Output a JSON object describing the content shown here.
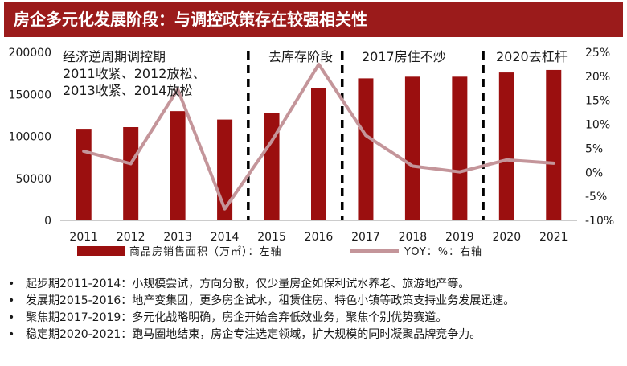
{
  "title": "房企多元化发展阶段：与调控政策存在较强相关性",
  "chart_data": {
    "type": "bar",
    "categories": [
      "2011",
      "2012",
      "2013",
      "2014",
      "2015",
      "2016",
      "2017",
      "2018",
      "2019",
      "2020",
      "2021"
    ],
    "series": [
      {
        "name": "商品房销售面积（万㎡）：左轴",
        "type": "bar",
        "axis": "left",
        "values": [
          109000,
          111000,
          130000,
          120000,
          128000,
          157000,
          169000,
          171000,
          171000,
          176000,
          179000
        ]
      },
      {
        "name": "YOY：%：右轴",
        "type": "line",
        "axis": "right",
        "values": [
          4.4,
          1.8,
          17.3,
          -7.6,
          6.5,
          22.5,
          7.7,
          1.3,
          0.1,
          2.6,
          1.9
        ]
      }
    ],
    "y_left": {
      "min": 0,
      "max": 200000,
      "ticks": [
        "0",
        "50000",
        "100000",
        "150000",
        "200000"
      ],
      "tick_values": [
        0,
        50000,
        100000,
        150000,
        200000
      ]
    },
    "y_right": {
      "min": -10,
      "max": 25,
      "ticks": [
        "-10%",
        "-5%",
        "0%",
        "5%",
        "10%",
        "15%",
        "20%",
        "25%"
      ],
      "tick_values": [
        -10,
        -5,
        0,
        5,
        10,
        15,
        20,
        25
      ]
    },
    "dividers_after_index": [
      3,
      5,
      8
    ],
    "annotations": [
      {
        "lines": [
          "经济逆周期调控期",
          "2011收紧、2012放松、",
          "2013收紧、2014放松"
        ]
      },
      {
        "lines": [
          "去库存阶段"
        ]
      },
      {
        "lines": [
          "2017房住不炒"
        ]
      },
      {
        "lines": [
          "2020去杠杆"
        ]
      }
    ],
    "colors": {
      "bar": "#9b0f0f",
      "line": "#c4959a",
      "divider": "#000000",
      "axis": "#999999"
    }
  },
  "bullets": [
    "起步期2011-2014：小规模尝试，方向分散，仅少量房企如保利试水养老、旅游地产等。",
    "发展期2015-2016：地产变集团，更多房企试水，租赁住房、特色小镇等政策支持业务发展迅速。",
    "聚焦期2017-2019：多元化战略明确，房企开始舍弃低效业务，聚焦个别优势赛道。",
    "稳定期2020-2021：跑马圈地结束，房企专注选定领域，扩大规模的同时凝聚品牌竞争力。"
  ],
  "bullet_symbol": "•"
}
